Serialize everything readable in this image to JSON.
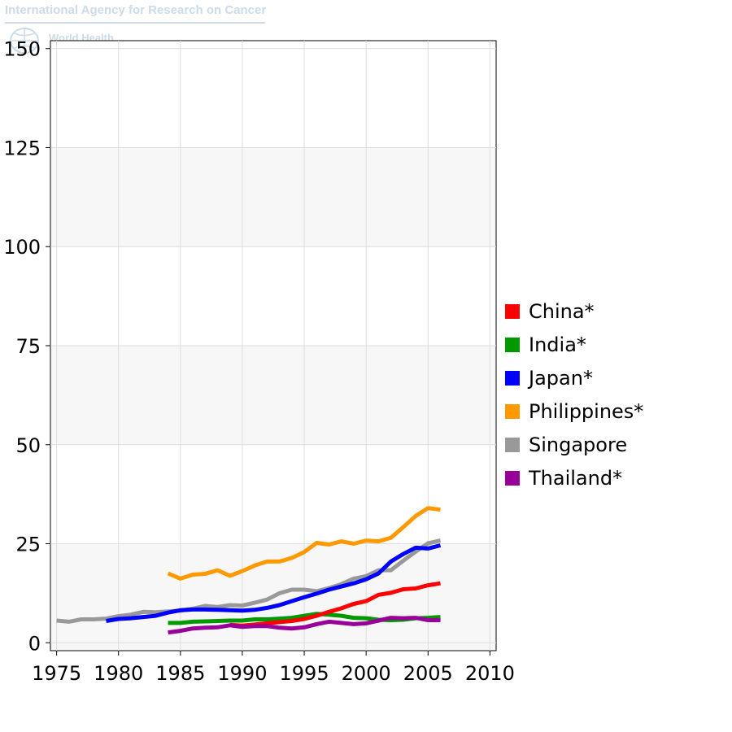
{
  "watermark": {
    "title": "International Agency for Research on Cancer",
    "subtitle": "World Health"
  },
  "chart_data": {
    "type": "line",
    "title": "",
    "xlabel": "",
    "ylabel": "",
    "xlim": [
      1974.5,
      2010.5
    ],
    "ylim": [
      -2,
      152
    ],
    "xticks": [
      1975,
      1980,
      1985,
      1990,
      1995,
      2000,
      2005,
      2010
    ],
    "yticks": [
      0,
      25,
      50,
      75,
      100,
      125,
      150
    ],
    "grid": true,
    "legend_position": "right",
    "series": [
      {
        "name": "China*",
        "color": "#ff0000",
        "x": [
          1989,
          1990,
          1991,
          1992,
          1993,
          1994,
          1995,
          1996,
          1997,
          1998,
          1999,
          2000,
          2001,
          2002,
          2003,
          2004,
          2005,
          2006
        ],
        "y": [
          4.5,
          4.3,
          4.6,
          4.9,
          5.2,
          5.5,
          6.0,
          6.8,
          7.8,
          8.7,
          9.8,
          10.5,
          12.1,
          12.6,
          13.5,
          13.7,
          14.5,
          15.0
        ]
      },
      {
        "name": "India*",
        "color": "#009900",
        "x": [
          1984,
          1985,
          1986,
          1987,
          1988,
          1989,
          1990,
          1991,
          1992,
          1993,
          1994,
          1995,
          1996,
          1997,
          1998,
          1999,
          2000,
          2001,
          2002,
          2003,
          2004,
          2005,
          2006
        ],
        "y": [
          5.0,
          5.0,
          5.3,
          5.4,
          5.5,
          5.6,
          5.6,
          5.9,
          5.9,
          6.1,
          6.3,
          6.8,
          7.3,
          7.1,
          6.8,
          6.3,
          6.2,
          5.8,
          5.7,
          5.8,
          6.2,
          6.3,
          6.5
        ]
      },
      {
        "name": "Japan*",
        "color": "#0000ff",
        "x": [
          1979,
          1980,
          1981,
          1982,
          1983,
          1984,
          1985,
          1986,
          1987,
          1988,
          1989,
          1990,
          1991,
          1992,
          1993,
          1994,
          1995,
          1996,
          1997,
          1998,
          1999,
          2000,
          2001,
          2002,
          2003,
          2004,
          2005,
          2006
        ],
        "y": [
          5.5,
          6.0,
          6.2,
          6.5,
          6.8,
          7.6,
          8.2,
          8.4,
          8.4,
          8.3,
          8.2,
          8.1,
          8.3,
          8.8,
          9.5,
          10.5,
          11.5,
          12.4,
          13.4,
          14.2,
          15.0,
          16.0,
          17.5,
          20.5,
          22.4,
          24.0,
          23.8,
          24.6
        ]
      },
      {
        "name": "Philippines*",
        "color": "#ff9900",
        "x": [
          1984,
          1985,
          1986,
          1987,
          1988,
          1989,
          1990,
          1991,
          1992,
          1993,
          1994,
          1995,
          1996,
          1997,
          1998,
          1999,
          2000,
          2001,
          2002,
          2003,
          2004,
          2005,
          2006
        ],
        "y": [
          17.5,
          16.2,
          17.2,
          17.4,
          18.3,
          16.9,
          18.1,
          19.5,
          20.5,
          20.5,
          21.4,
          22.9,
          25.2,
          24.8,
          25.6,
          25.0,
          25.8,
          25.6,
          26.5,
          29.2,
          32.0,
          34.0,
          33.6
        ]
      },
      {
        "name": "Singapore",
        "color": "#999999",
        "x": [
          1975,
          1976,
          1977,
          1978,
          1979,
          1980,
          1981,
          1982,
          1983,
          1984,
          1985,
          1986,
          1987,
          1988,
          1989,
          1990,
          1991,
          1992,
          1993,
          1994,
          1995,
          1996,
          1997,
          1998,
          1999,
          2000,
          2001,
          2002,
          2003,
          2004,
          2005,
          2006
        ],
        "y": [
          5.6,
          5.3,
          5.9,
          5.9,
          6.1,
          6.7,
          7.1,
          7.8,
          7.7,
          7.9,
          8.1,
          8.6,
          9.3,
          9.0,
          9.5,
          9.4,
          10.1,
          10.9,
          12.5,
          13.4,
          13.4,
          13.0,
          13.8,
          14.8,
          16.2,
          16.8,
          18.3,
          18.3,
          20.7,
          23.0,
          25.1,
          25.8
        ]
      },
      {
        "name": "Thailand*",
        "color": "#990099",
        "x": [
          1984,
          1985,
          1986,
          1987,
          1988,
          1989,
          1990,
          1991,
          1992,
          1993,
          1994,
          1995,
          1996,
          1997,
          1998,
          1999,
          2000,
          2001,
          2002,
          2003,
          2004,
          2005,
          2006
        ],
        "y": [
          2.6,
          3.0,
          3.6,
          3.8,
          3.9,
          4.4,
          4.0,
          4.2,
          4.2,
          3.8,
          3.6,
          3.9,
          4.7,
          5.3,
          5.0,
          4.7,
          4.9,
          5.6,
          6.3,
          6.2,
          6.3,
          5.7,
          5.7
        ]
      }
    ]
  }
}
